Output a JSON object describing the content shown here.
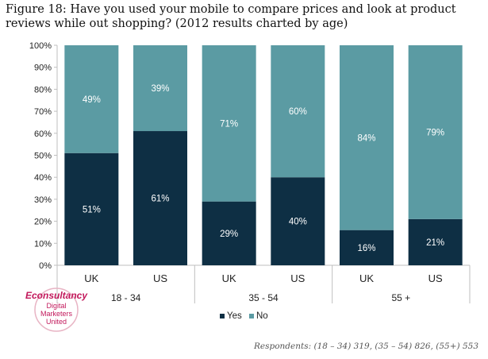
{
  "title": "Figure 18: Have you used your mobile to compare prices and look at product reviews while out shopping? (2012 results charted by age)",
  "footnote": "Respondents: (18 – 34) 319, (35 – 54) 826, (55+) 553",
  "logo": {
    "brand": "Econsultancy",
    "tagline_1": "Digital",
    "tagline_2": "Marketers",
    "tagline_3": "United"
  },
  "colors": {
    "yes": "#0e2f44",
    "no": "#5b9ba3",
    "grid": "#dddddd",
    "text": "#222222"
  },
  "chart_data": {
    "type": "bar",
    "stacked": true,
    "title": "Figure 18: Have you used your mobile to compare prices and look at product reviews while out shopping? (2012 results charted by age)",
    "categories": [
      "UK",
      "US",
      "UK",
      "US",
      "UK",
      "US"
    ],
    "groups": [
      {
        "label": "18 - 34",
        "categories": [
          "UK",
          "US"
        ]
      },
      {
        "label": "35 - 54",
        "categories": [
          "UK",
          "US"
        ]
      },
      {
        "label": "55  +",
        "categories": [
          "UK",
          "US"
        ]
      }
    ],
    "series": [
      {
        "name": "Yes",
        "values": [
          51,
          61,
          29,
          40,
          16,
          21
        ],
        "labels": [
          "51%",
          "61%",
          "29%",
          "40%",
          "16%",
          "21%"
        ]
      },
      {
        "name": "No",
        "values": [
          49,
          39,
          71,
          60,
          84,
          79
        ],
        "labels": [
          "49%",
          "39%",
          "71%",
          "60%",
          "84%",
          "79%"
        ]
      }
    ],
    "ylim": [
      0,
      100
    ],
    "yticks": [
      "0%",
      "10%",
      "20%",
      "30%",
      "40%",
      "50%",
      "60%",
      "70%",
      "80%",
      "90%",
      "100%"
    ],
    "xlabel": "",
    "ylabel": "",
    "grid": false,
    "legend": "bottom-center"
  }
}
